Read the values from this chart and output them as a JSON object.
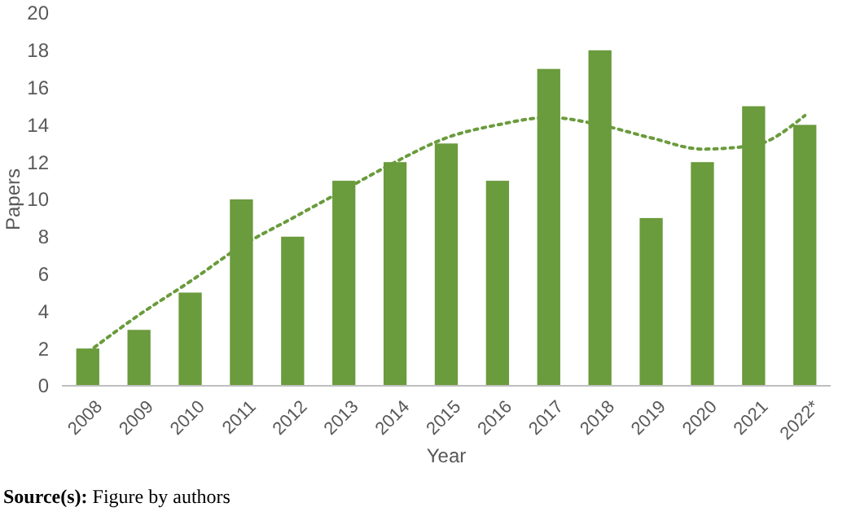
{
  "chart_data": {
    "type": "bar",
    "xlabel": "Year",
    "ylabel": "Papers",
    "categories": [
      "2008",
      "2009",
      "2010",
      "2011",
      "2012",
      "2013",
      "2014",
      "2015",
      "2016",
      "2017",
      "2018",
      "2019",
      "2020",
      "2021",
      "2022*"
    ],
    "series": [
      {
        "color": "#6a9b3c",
        "values": [
          2,
          3,
          5,
          10,
          8,
          11,
          12,
          13,
          11,
          17,
          18,
          9,
          12,
          15,
          14
        ]
      },
      {
        "type": "line",
        "color": "#6a9b3c",
        "line_style": "dotted",
        "values": [
          1.8,
          3.8,
          5.6,
          7.5,
          9,
          10.5,
          12,
          13.3,
          14,
          14.4,
          14,
          13.3,
          12.7,
          12.9,
          14.5
        ]
      }
    ],
    "ylim": [
      0,
      20
    ],
    "yticks": [
      0,
      2,
      4,
      6,
      8,
      10,
      12,
      14,
      16,
      18,
      20
    ],
    "grid": false,
    "annotations": [
      "Source(s): Figure by authors"
    ]
  }
}
